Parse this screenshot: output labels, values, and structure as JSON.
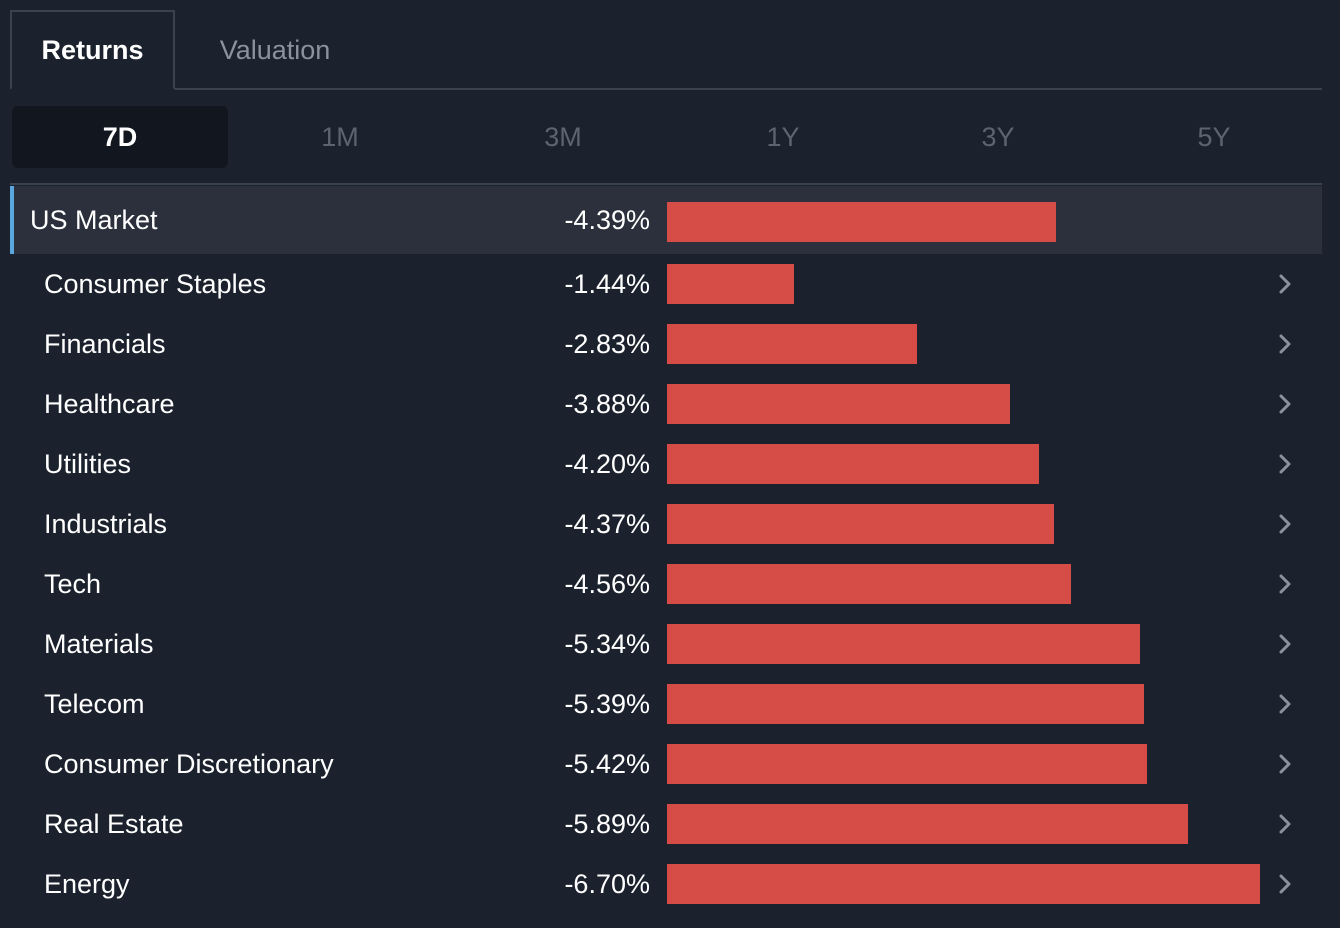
{
  "top_tabs": [
    {
      "label": "Returns",
      "active": true
    },
    {
      "label": "Valuation",
      "active": false
    }
  ],
  "period_tabs": [
    {
      "label": "7D",
      "active": true
    },
    {
      "label": "1M",
      "active": false
    },
    {
      "label": "3M",
      "active": false
    },
    {
      "label": "1Y",
      "active": false
    },
    {
      "label": "3Y",
      "active": false
    },
    {
      "label": "5Y",
      "active": false
    }
  ],
  "colors": {
    "negative_bar": "#d64c47",
    "highlight_accent": "#5aa7e0",
    "background": "#1b222d"
  },
  "chart_data": {
    "type": "bar",
    "categories": [
      "US Market",
      "Consumer Staples",
      "Financials",
      "Healthcare",
      "Utilities",
      "Industrials",
      "Tech",
      "Materials",
      "Telecom",
      "Consumer Discretionary",
      "Real Estate",
      "Energy"
    ],
    "values": [
      -4.39,
      -1.44,
      -2.83,
      -3.88,
      -4.2,
      -4.37,
      -4.56,
      -5.34,
      -5.39,
      -5.42,
      -5.89,
      -6.7
    ],
    "value_labels": [
      "-4.39%",
      "-1.44%",
      "-2.83%",
      "-3.88%",
      "-4.20%",
      "-4.37%",
      "-4.56%",
      "-5.34%",
      "-5.39%",
      "-5.42%",
      "-5.89%",
      "-6.70%"
    ],
    "highlighted_category": "US Market",
    "unit": "%"
  }
}
